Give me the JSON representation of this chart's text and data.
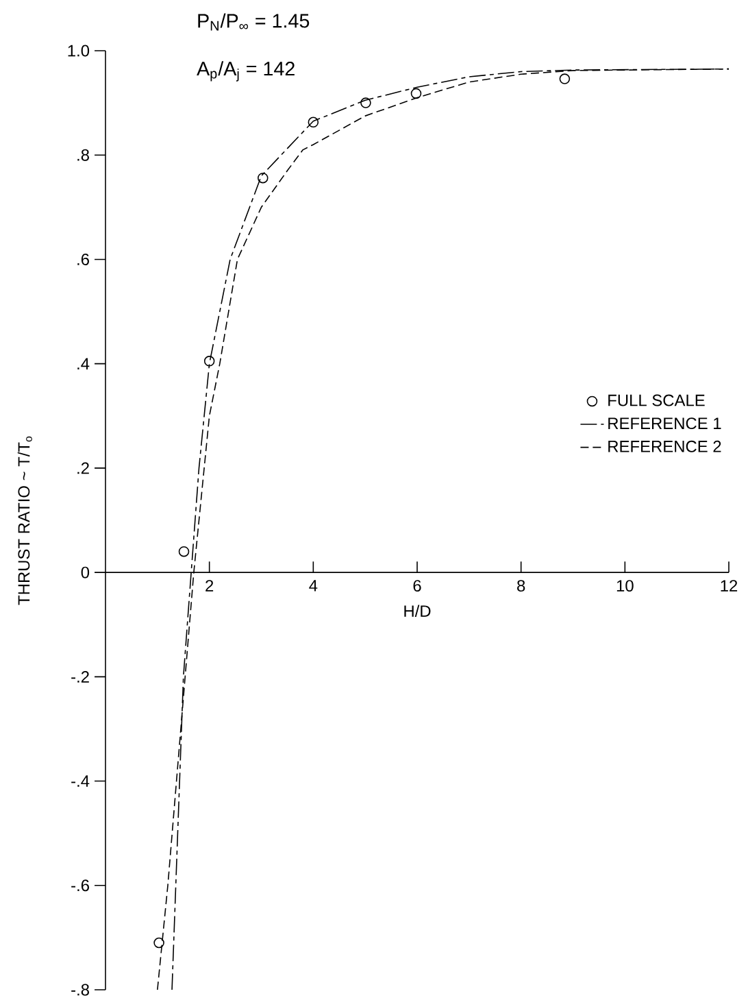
{
  "chart_data": {
    "type": "line",
    "xlabel": "H/D",
    "ylabel": "THRUST RATIO ~ T/T$_{o}$",
    "annotations": [
      "P$_{N}$/P$_{∞}$  =  1.45",
      "A$_{p}$/A$_{j}$  =  142"
    ],
    "xlim": [
      0,
      12
    ],
    "ylim": [
      -0.8,
      1.0
    ],
    "xticks": [
      2,
      4,
      6,
      8,
      10,
      12
    ],
    "yticks": [
      {
        "value": -0.8,
        "label": "-.8"
      },
      {
        "value": -0.6,
        "label": "-.6"
      },
      {
        "value": -0.4,
        "label": "-.4"
      },
      {
        "value": -0.2,
        "label": "-.2"
      },
      {
        "value": 0,
        "label": "0"
      },
      {
        "value": 0.2,
        "label": ".2"
      },
      {
        "value": 0.4,
        "label": ".4"
      },
      {
        "value": 0.6,
        "label": ".6"
      },
      {
        "value": 0.8,
        "label": ".8"
      },
      {
        "value": 1.0,
        "label": "1.0"
      }
    ],
    "grid": false,
    "legend": "right",
    "series": [
      {
        "name": "FULL SCALE",
        "type": "scatter",
        "marker": "circle",
        "color": "#000000",
        "x": [
          1.03,
          1.51,
          2.0,
          3.03,
          4.0,
          5.01,
          5.98,
          8.84
        ],
        "values": [
          -0.71,
          0.04,
          0.405,
          0.756,
          0.863,
          0.9,
          0.918,
          0.946
        ]
      },
      {
        "name": "REFERENCE 1",
        "line_style": "dashed",
        "color": "#000000",
        "x": [
          1.28,
          1.5,
          1.65,
          1.8,
          2.0,
          2.4,
          3.0,
          4.0,
          5.0,
          6.0,
          7.0,
          8.0,
          9.0,
          12.0
        ],
        "values": [
          -0.8,
          -0.2,
          0.0,
          0.2,
          0.4,
          0.6,
          0.76,
          0.865,
          0.905,
          0.93,
          0.95,
          0.96,
          0.963,
          0.965
        ]
      },
      {
        "name": "REFERENCE 2",
        "line_style": "dashed",
        "color": "#000000",
        "x": [
          1.0,
          1.2,
          1.45,
          1.7,
          2.0,
          2.2,
          2.54,
          3.0,
          3.5,
          3.8,
          4.0,
          5.0,
          6.0,
          7.0,
          8.0,
          9.0,
          12.0
        ],
        "values": [
          -0.8,
          -0.6,
          -0.3,
          0.0,
          0.3,
          0.4,
          0.6,
          0.7,
          0.77,
          0.81,
          0.82,
          0.875,
          0.91,
          0.94,
          0.955,
          0.962,
          0.965
        ]
      }
    ]
  }
}
